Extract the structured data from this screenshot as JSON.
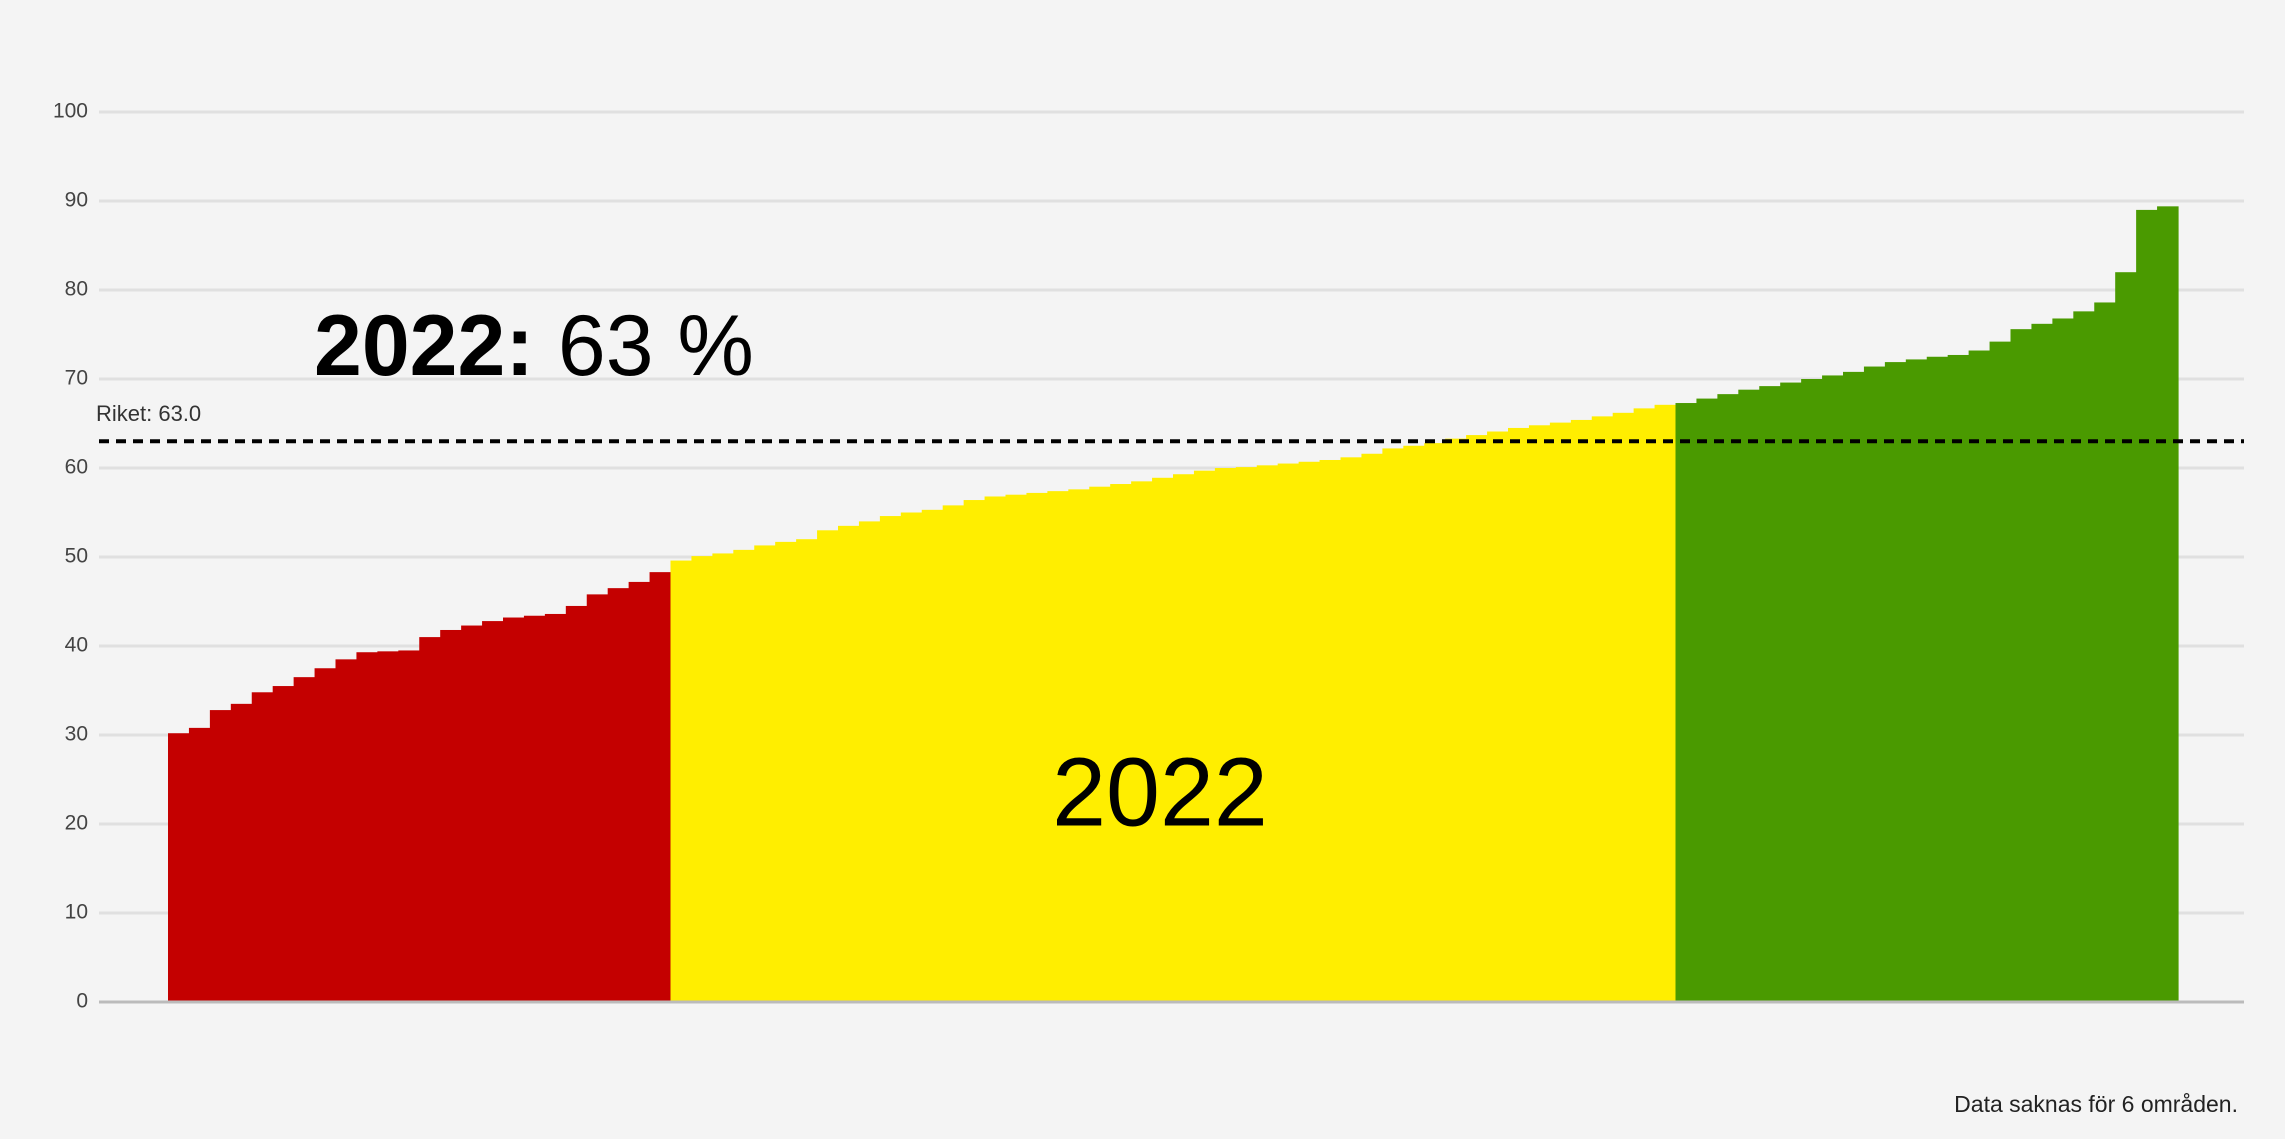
{
  "chart_data": {
    "type": "bar",
    "ylim": [
      0,
      100
    ],
    "yticks": [
      0,
      10,
      20,
      30,
      40,
      50,
      60,
      70,
      80,
      90,
      100
    ],
    "grid": true,
    "series": [
      {
        "color": "#c40000",
        "values": [
          30.2,
          30.8,
          32.8,
          33.5,
          34.8,
          35.5,
          36.5,
          37.5,
          38.5,
          39.3,
          39.4,
          39.5,
          41,
          41.8,
          42.3,
          42.8,
          43.2,
          43.4,
          43.6,
          44.5,
          45.8,
          46.5,
          47.2,
          48.3
        ]
      },
      {
        "color": "#ffee00",
        "values": [
          49.6,
          50.1,
          50.4,
          50.8,
          51.3,
          51.7,
          52,
          53,
          53.5,
          54,
          54.6,
          55,
          55.3,
          55.8,
          56.4,
          56.8,
          57,
          57.2,
          57.4,
          57.6,
          57.9,
          58.2,
          58.5,
          58.9,
          59.3,
          59.7,
          60,
          60.1,
          60.3,
          60.5,
          60.7,
          60.9,
          61.2,
          61.6,
          62.2,
          62.5,
          62.8,
          63.3,
          63.7,
          64.1,
          64.5,
          64.8,
          65.1,
          65.4,
          65.8,
          66.2,
          66.7,
          67.1
        ]
      },
      {
        "color": "#4a9a00",
        "values": [
          67.3,
          67.8,
          68.3,
          68.8,
          69.2,
          69.6,
          70,
          70.4,
          70.8,
          71.4,
          71.9,
          72.2,
          72.5,
          72.7,
          73.2,
          74.2,
          75.6,
          76.2,
          76.8,
          77.6,
          78.6,
          82,
          89,
          89.4
        ]
      }
    ],
    "reference_line": {
      "value": 63,
      "label": "Riket: 63.0"
    },
    "annotation": {
      "bold": "2022:",
      "text": "63 %"
    },
    "center_label": "2022",
    "footnote": "Data saknas för 6 områden."
  }
}
